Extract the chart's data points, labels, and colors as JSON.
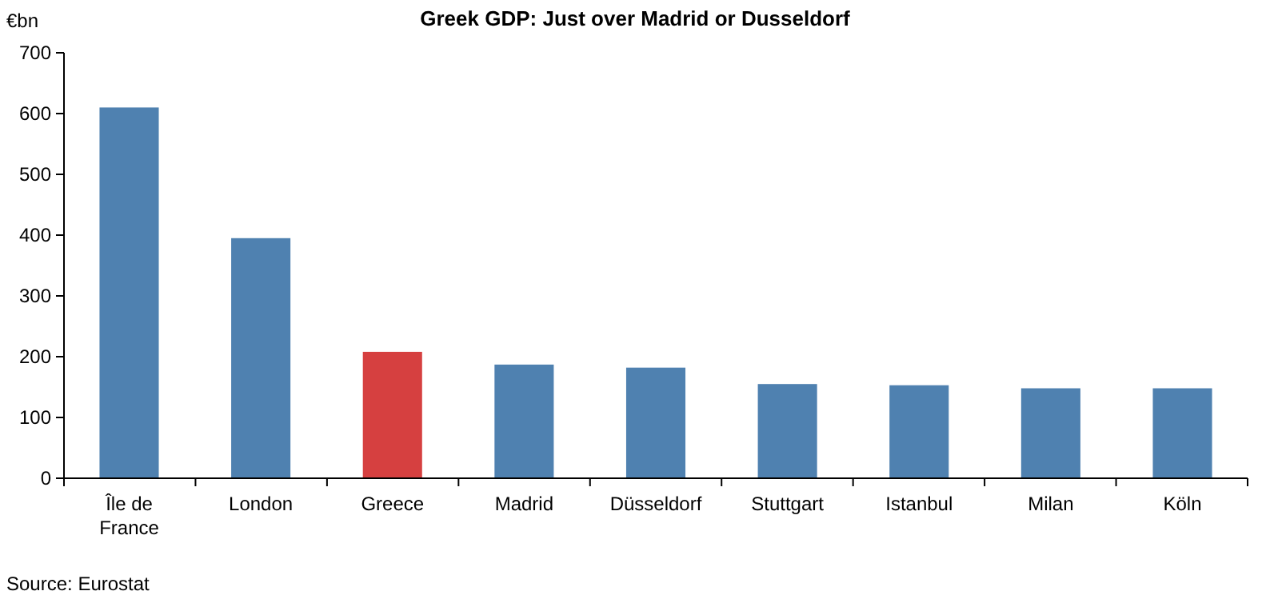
{
  "chart_data": {
    "type": "bar",
    "title": "Greek GDP: Just over Madrid or Dusseldorf",
    "ylabel": "€bn",
    "categories": [
      "Île de France",
      "London",
      "Greece",
      "Madrid",
      "Düsseldorf",
      "Stuttgart",
      "Istanbul",
      "Milan",
      "Köln"
    ],
    "values": [
      610,
      395,
      208,
      187,
      182,
      155,
      153,
      148,
      148
    ],
    "colors": [
      "#4f81b0",
      "#4f81b0",
      "#d64040",
      "#4f81b0",
      "#4f81b0",
      "#4f81b0",
      "#4f81b0",
      "#4f81b0",
      "#4f81b0"
    ],
    "ylim": [
      0,
      700
    ],
    "yticks": [
      0,
      100,
      200,
      300,
      400,
      500,
      600,
      700
    ],
    "grid": false,
    "annotations": [
      "Source: Eurostat"
    ]
  }
}
